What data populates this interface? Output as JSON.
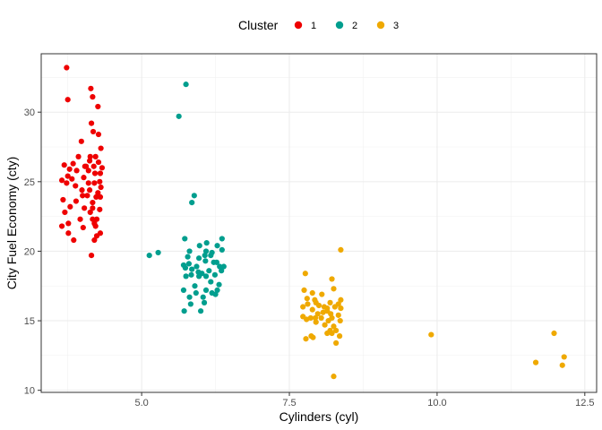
{
  "chart_data": {
    "type": "scatter",
    "xlabel": "Cylinders (cyl)",
    "ylabel": "City Fuel Economy (cty)",
    "xlim": [
      3.3,
      12.7
    ],
    "ylim": [
      9.85,
      34.2
    ],
    "x_ticks": [
      5.0,
      7.5,
      10.0,
      12.5
    ],
    "x_tick_labels": [
      "5.0",
      "7.5",
      "10.0",
      "12.5"
    ],
    "y_ticks": [
      10,
      15,
      20,
      25,
      30
    ],
    "y_tick_labels": [
      "10",
      "15",
      "20",
      "25",
      "30"
    ],
    "grid": true,
    "legend": {
      "title": "Cluster",
      "position": "top",
      "entries": [
        {
          "label": "1",
          "color": "#ee0000"
        },
        {
          "label": "2",
          "color": "#009e8e"
        },
        {
          "label": "3",
          "color": "#efa900"
        }
      ]
    },
    "series": [
      {
        "name": "1",
        "color": "#ee0000",
        "points": [
          [
            3.73,
            33.2
          ],
          [
            3.75,
            30.9
          ],
          [
            4.14,
            31.7
          ],
          [
            4.17,
            31.1
          ],
          [
            4.26,
            30.4
          ],
          [
            4.15,
            29.2
          ],
          [
            4.18,
            28.6
          ],
          [
            4.27,
            28.4
          ],
          [
            3.98,
            27.9
          ],
          [
            4.31,
            27.4
          ],
          [
            3.93,
            26.8
          ],
          [
            4.13,
            26.8
          ],
          [
            4.22,
            26.8
          ],
          [
            4.12,
            26.5
          ],
          [
            3.84,
            26.3
          ],
          [
            4.27,
            26.4
          ],
          [
            3.69,
            26.2
          ],
          [
            3.78,
            25.9
          ],
          [
            4.04,
            26.1
          ],
          [
            4.06,
            26.1
          ],
          [
            4.19,
            26.1
          ],
          [
            4.33,
            26.0
          ],
          [
            3.9,
            25.8
          ],
          [
            4.1,
            25.8
          ],
          [
            4.21,
            25.6
          ],
          [
            4.3,
            25.6
          ],
          [
            3.75,
            25.4
          ],
          [
            4.02,
            25.3
          ],
          [
            3.65,
            25.1
          ],
          [
            3.73,
            24.9
          ],
          [
            3.82,
            25.2
          ],
          [
            4.1,
            24.9
          ],
          [
            4.2,
            24.9
          ],
          [
            4.29,
            25.0
          ],
          [
            3.88,
            24.7
          ],
          [
            4.31,
            24.6
          ],
          [
            3.99,
            24.4
          ],
          [
            4.12,
            24.4
          ],
          [
            4.26,
            24.2
          ],
          [
            4.0,
            24.0
          ],
          [
            4.08,
            24.0
          ],
          [
            4.23,
            23.9
          ],
          [
            4.3,
            23.9
          ],
          [
            3.67,
            23.7
          ],
          [
            3.89,
            23.6
          ],
          [
            4.17,
            23.5
          ],
          [
            3.79,
            23.2
          ],
          [
            4.03,
            23.1
          ],
          [
            4.17,
            23.1
          ],
          [
            4.29,
            23.0
          ],
          [
            3.7,
            22.8
          ],
          [
            4.13,
            22.8
          ],
          [
            3.96,
            22.3
          ],
          [
            4.17,
            22.3
          ],
          [
            4.24,
            22.3
          ],
          [
            3.76,
            22.0
          ],
          [
            4.2,
            22.0
          ],
          [
            3.65,
            21.8
          ],
          [
            4.01,
            21.7
          ],
          [
            4.22,
            21.8
          ],
          [
            3.76,
            21.3
          ],
          [
            4.3,
            21.3
          ],
          [
            4.24,
            21.1
          ],
          [
            4.2,
            20.8
          ],
          [
            3.85,
            20.8
          ],
          [
            4.15,
            19.7
          ]
        ]
      },
      {
        "name": "2",
        "color": "#009e8e",
        "points": [
          [
            5.75,
            32.0
          ],
          [
            5.63,
            29.7
          ],
          [
            5.89,
            24.0
          ],
          [
            5.85,
            23.5
          ],
          [
            5.73,
            20.9
          ],
          [
            6.36,
            20.9
          ],
          [
            6.1,
            20.6
          ],
          [
            5.98,
            20.4
          ],
          [
            6.28,
            20.4
          ],
          [
            6.36,
            20.1
          ],
          [
            5.81,
            20.0
          ],
          [
            6.09,
            20.0
          ],
          [
            6.19,
            19.9
          ],
          [
            6.07,
            19.7
          ],
          [
            6.17,
            19.7
          ],
          [
            5.13,
            19.7
          ],
          [
            5.28,
            19.9
          ],
          [
            5.78,
            19.6
          ],
          [
            5.97,
            19.5
          ],
          [
            6.08,
            19.3
          ],
          [
            6.22,
            19.2
          ],
          [
            6.27,
            19.2
          ],
          [
            5.71,
            19.0
          ],
          [
            5.8,
            19.1
          ],
          [
            5.93,
            18.9
          ],
          [
            6.32,
            18.9
          ],
          [
            6.39,
            18.9
          ],
          [
            5.74,
            18.8
          ],
          [
            5.85,
            18.7
          ],
          [
            6.14,
            18.6
          ],
          [
            6.35,
            18.6
          ],
          [
            5.96,
            18.5
          ],
          [
            6.02,
            18.4
          ],
          [
            5.75,
            18.2
          ],
          [
            5.84,
            18.3
          ],
          [
            5.97,
            18.2
          ],
          [
            6.09,
            18.2
          ],
          [
            6.24,
            18.3
          ],
          [
            6.17,
            17.8
          ],
          [
            5.9,
            17.5
          ],
          [
            5.71,
            17.2
          ],
          [
            6.09,
            17.2
          ],
          [
            6.31,
            17.6
          ],
          [
            6.28,
            17.2
          ],
          [
            5.92,
            17.0
          ],
          [
            6.19,
            17.0
          ],
          [
            6.04,
            16.7
          ],
          [
            6.25,
            16.9
          ],
          [
            5.81,
            16.7
          ],
          [
            5.83,
            16.2
          ],
          [
            6.06,
            16.3
          ],
          [
            5.72,
            15.7
          ],
          [
            6.0,
            15.7
          ]
        ]
      },
      {
        "name": "3",
        "color": "#efa900",
        "points": [
          [
            8.37,
            20.1
          ],
          [
            7.77,
            18.4
          ],
          [
            8.22,
            18.0
          ],
          [
            7.75,
            17.2
          ],
          [
            7.89,
            17.0
          ],
          [
            8.25,
            17.3
          ],
          [
            8.05,
            16.9
          ],
          [
            7.8,
            16.6
          ],
          [
            7.93,
            16.5
          ],
          [
            8.19,
            16.3
          ],
          [
            8.33,
            16.2
          ],
          [
            8.37,
            16.5
          ],
          [
            7.73,
            16.0
          ],
          [
            7.81,
            16.2
          ],
          [
            7.95,
            16.3
          ],
          [
            8.0,
            16.1
          ],
          [
            8.09,
            16.0
          ],
          [
            8.14,
            15.9
          ],
          [
            8.27,
            16.0
          ],
          [
            8.37,
            15.9
          ],
          [
            7.89,
            15.8
          ],
          [
            8.14,
            15.7
          ],
          [
            7.98,
            15.5
          ],
          [
            8.07,
            15.6
          ],
          [
            8.2,
            15.5
          ],
          [
            8.33,
            15.4
          ],
          [
            7.73,
            15.3
          ],
          [
            7.79,
            15.1
          ],
          [
            7.86,
            15.2
          ],
          [
            7.94,
            15.2
          ],
          [
            8.04,
            15.2
          ],
          [
            8.16,
            15.0
          ],
          [
            8.22,
            15.2
          ],
          [
            8.36,
            15.0
          ],
          [
            7.95,
            14.9
          ],
          [
            8.1,
            14.7
          ],
          [
            8.25,
            14.6
          ],
          [
            8.19,
            14.3
          ],
          [
            8.29,
            14.3
          ],
          [
            8.14,
            14.1
          ],
          [
            8.22,
            14.1
          ],
          [
            7.87,
            13.9
          ],
          [
            7.78,
            13.7
          ],
          [
            7.9,
            13.8
          ],
          [
            8.35,
            13.9
          ],
          [
            8.29,
            13.4
          ],
          [
            8.25,
            11.0
          ],
          [
            9.9,
            14.0
          ],
          [
            11.98,
            14.1
          ],
          [
            12.15,
            12.4
          ],
          [
            11.67,
            12.0
          ],
          [
            12.12,
            11.8
          ]
        ]
      }
    ]
  }
}
